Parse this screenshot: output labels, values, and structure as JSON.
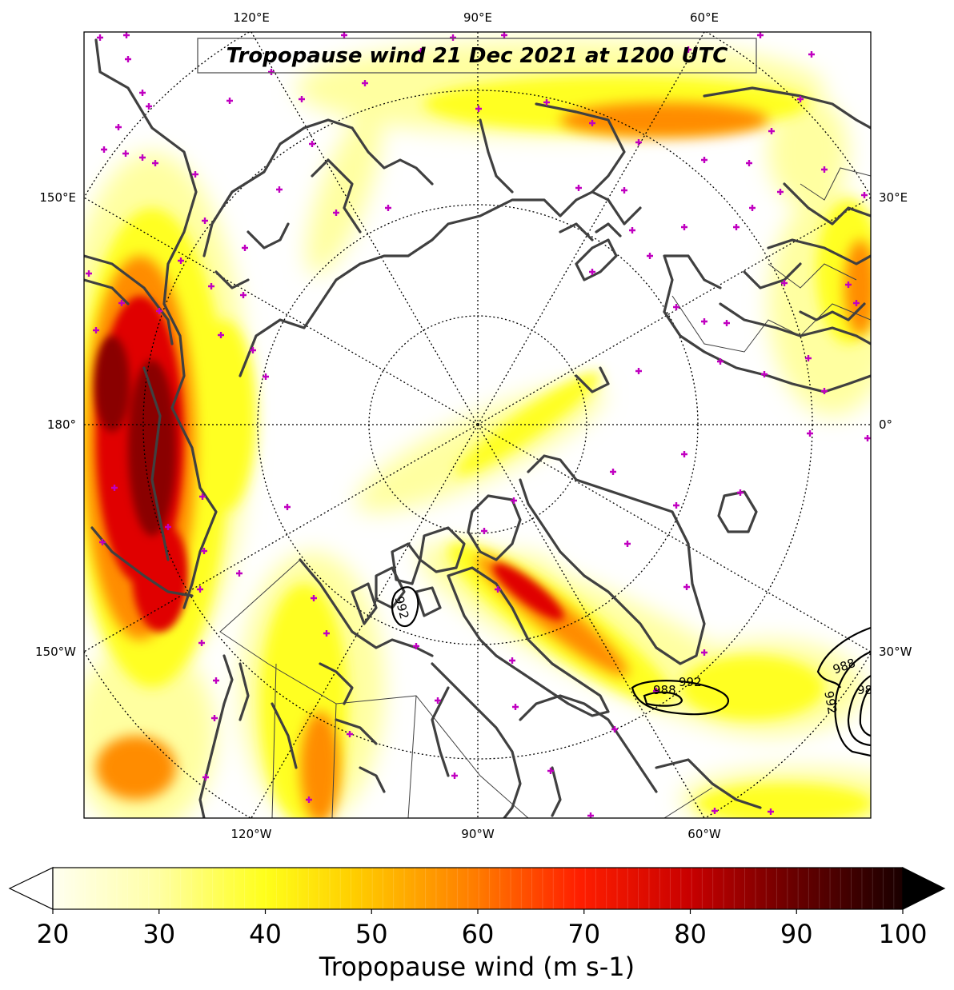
{
  "map": {
    "title": "Tropopause wind 21 Dec 2021 at 1200 UTC",
    "projection": "north-polar-stereographic",
    "graticule_labels": {
      "top": [
        "120°E",
        "90°E",
        "60°E"
      ],
      "bottom": [
        "120°W",
        "90°W",
        "60°W"
      ],
      "left": [
        "150°E",
        "180°",
        "150°W"
      ],
      "right": [
        "30°E",
        "0°",
        "30°W"
      ]
    },
    "pressure_contour_labels": [
      "992",
      "988",
      "992",
      "988",
      "992",
      "98"
    ],
    "colors": {
      "coastline": "#404040",
      "station_marker": "#c000c0",
      "contour": "#000000",
      "graticule": "#000000"
    }
  },
  "colorbar": {
    "label": "Tropopause wind (m s-1)",
    "ticks": [
      "20",
      "30",
      "40",
      "50",
      "60",
      "70",
      "80",
      "90",
      "100"
    ],
    "min": 20,
    "max": 100,
    "extend": "both",
    "colormap": "hot_r"
  }
}
